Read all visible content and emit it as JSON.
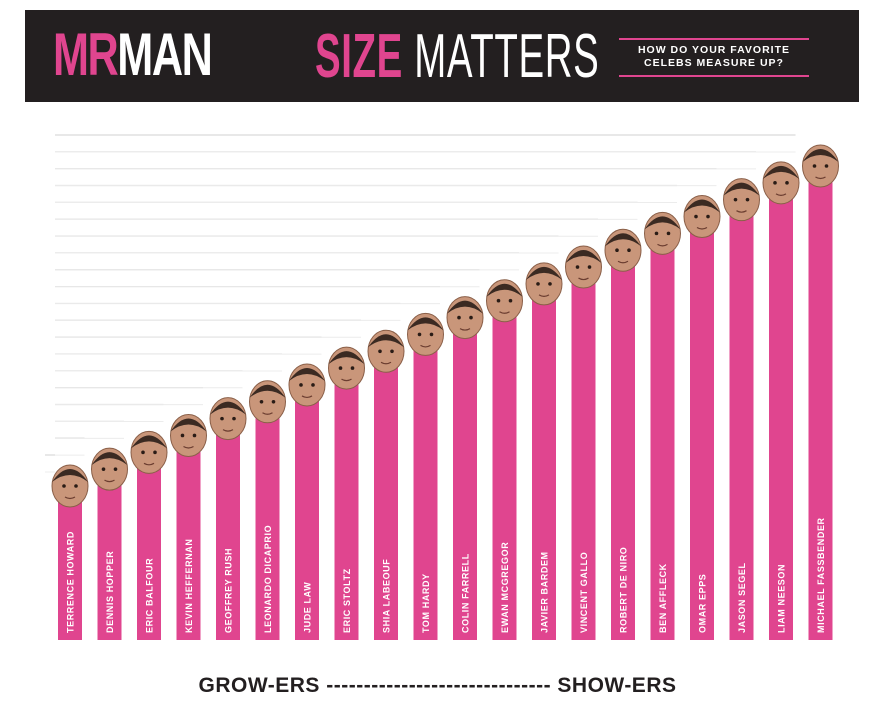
{
  "header": {
    "logo_part1": "MR",
    "logo_part2": "MAN",
    "title_part1": "SIZE",
    "title_part2": "MATTERS",
    "tagline_line1": "HOW DO YOUR FAVORITE",
    "tagline_line2": "CELEBS MEASURE UP?"
  },
  "footer": {
    "left_label": "GROW-ERS",
    "separator": "------------------------------",
    "right_label": "SHOW-ERS"
  },
  "colors": {
    "bar": "#e0458f",
    "header_bg": "#231f20",
    "accent": "#e0458f"
  },
  "chart_data": {
    "type": "bar",
    "orientation": "vertical",
    "categories": [
      "TERRENCE HOWARD",
      "DENNIS HOPPER",
      "ERIC BALFOUR",
      "KEVIN HEFFERNAN",
      "GEOFFREY RUSH",
      "LEONARDO DICAPRIO",
      "JUDE LAW",
      "ERIC STOLTZ",
      "SHIA LABEOUF",
      "TOM HARDY",
      "COLIN FARRELL",
      "EWAN MCGREGOR",
      "JAVIER BARDEM",
      "VINCENT GALLO",
      "ROBERT DE NIRO",
      "BEN AFFLECK",
      "OMAR EPPS",
      "JASON SEGEL",
      "LIAM NEESON",
      "MICHAEL FASSBENDER"
    ],
    "values": [
      1,
      2,
      3,
      4,
      5,
      6,
      7,
      8,
      9,
      10,
      11,
      12,
      13,
      14,
      15,
      16,
      17,
      18,
      19,
      20
    ],
    "title": "SIZE MATTERS",
    "xlabel": "",
    "ylabel": "",
    "axis_labels_printed": false,
    "grid": true,
    "marker": "celebrity face at top of each bar",
    "note_on_values": "no numeric scale is printed; values are relative rank order"
  }
}
